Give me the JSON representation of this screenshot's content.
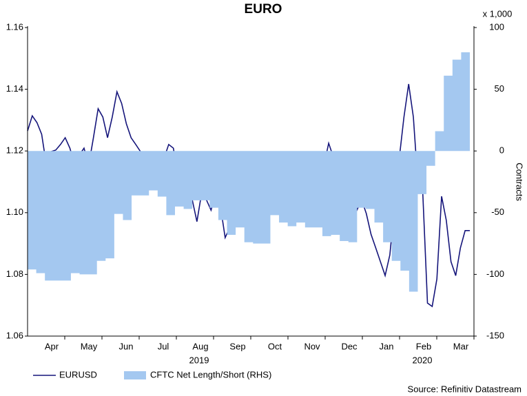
{
  "chart_data": {
    "type": "line",
    "title": "EURO",
    "y2_unit_label": "x 1,000",
    "y2label": "Contracts",
    "source": "Source: Refinitiv Datastream",
    "x_labels": [
      "Apr",
      "May",
      "Jun",
      "Jul",
      "Aug",
      "Sep",
      "Oct",
      "Nov",
      "Dec",
      "Jan",
      "Feb",
      "Mar"
    ],
    "x_year_labels": [
      "2019",
      "2020"
    ],
    "ylim": [
      1.06,
      1.16
    ],
    "yticks": [
      1.06,
      1.08,
      {
        "value": 1.1,
        "label": "1.10"
      },
      1.12,
      1.14,
      1.16
    ],
    "y2lim": [
      -150,
      100
    ],
    "y2ticks": [
      -150,
      -100,
      -50,
      0,
      50,
      100
    ],
    "series": [
      {
        "name": "EURUSD",
        "type": "line",
        "color": "#14147a",
        "values": [
          1.1265,
          1.1314,
          1.1292,
          1.1254,
          1.1154,
          1.1198,
          1.1203,
          1.1221,
          1.1243,
          1.1209,
          1.1154,
          1.1187,
          1.1209,
          1.1154,
          1.1243,
          1.1337,
          1.131,
          1.1243,
          1.131,
          1.1392,
          1.1354,
          1.1288,
          1.1243,
          1.1221,
          1.1198,
          1.1158,
          1.1142,
          1.1142,
          1.1064,
          1.1176,
          1.1221,
          1.1209,
          1.1109,
          1.1087,
          1.106,
          1.1042,
          1.0971,
          1.1064,
          1.1042,
          1.1008,
          1.1064,
          1.102,
          1.0919,
          1.0953,
          1.0997,
          1.102,
          1.1087,
          1.1142,
          1.1109,
          1.1098,
          1.1171,
          1.1087,
          1.102,
          1.1042,
          1.1098,
          1.1042,
          1.1053,
          1.1075,
          1.1091,
          1.1042,
          1.1136,
          1.1098,
          1.1142,
          1.1154,
          1.1225,
          1.118,
          1.1109,
          1.1154,
          1.1098,
          1.1075,
          1.1008,
          1.1042,
          1.0997,
          1.093,
          1.0886,
          1.0841,
          1.0796,
          1.0863,
          1.102,
          1.1176,
          1.131,
          1.1417,
          1.131,
          1.1087,
          1.1064,
          1.0707,
          1.0696,
          1.0785,
          1.1053,
          1.0975,
          1.0841,
          1.0796,
          1.0886,
          1.0942,
          1.0942
        ]
      },
      {
        "name": "CFTC Net Length/Short (RHS)",
        "type": "step-area",
        "axis": "y2",
        "color": "#a4c8f0",
        "values": [
          -96,
          -99,
          -105,
          -105,
          -105,
          -99,
          -100,
          -100,
          -89,
          -87,
          -51,
          -56,
          -36,
          -36,
          -32,
          -37,
          -52,
          -45,
          -47,
          -40,
          -40,
          -46,
          -56,
          -68,
          -62,
          -74,
          -75,
          -75,
          -52,
          -58,
          -61,
          -58,
          -62,
          -62,
          -69,
          -68,
          -73,
          -74,
          -46,
          -47,
          -58,
          -74,
          -89,
          -97,
          -114,
          -35,
          -12,
          16,
          61,
          74,
          80
        ]
      }
    ]
  }
}
